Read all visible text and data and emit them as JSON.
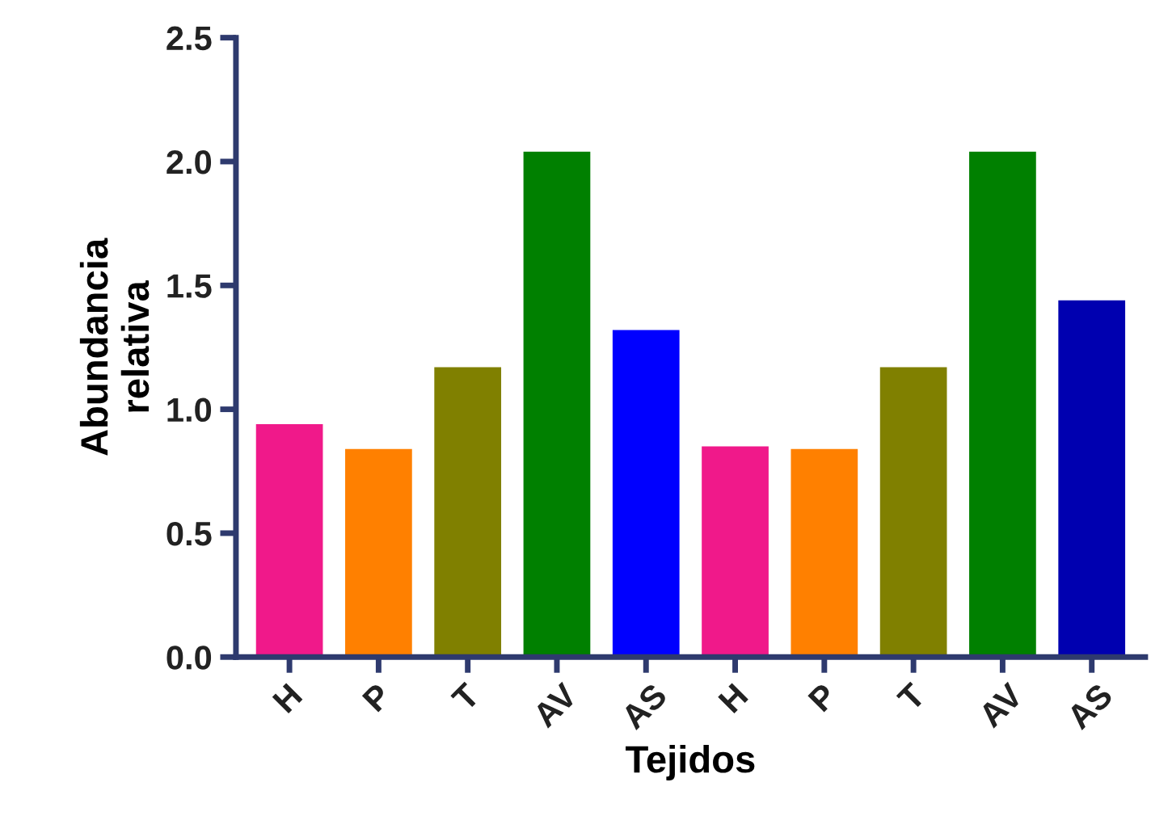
{
  "chart_data": {
    "type": "bar",
    "xlabel": "Tejidos",
    "ylabel": "Abundancia\nrelativa",
    "categories": [
      "H",
      "P",
      "T",
      "AV",
      "AS",
      "H",
      "P",
      "T",
      "AV",
      "AS"
    ],
    "values": [
      0.94,
      0.84,
      1.17,
      2.04,
      1.32,
      0.85,
      0.84,
      1.17,
      2.04,
      1.44
    ],
    "colors": [
      "#f0198a",
      "#ff8000",
      "#808000",
      "#008000",
      "#0000ff",
      "#f0198a",
      "#ff8000",
      "#808000",
      "#008000",
      "#0000b0"
    ],
    "ylim": [
      0,
      2.5
    ],
    "yticks": [
      {
        "value": 0,
        "label": "0.0"
      },
      {
        "value": 0.5,
        "label": "0.5"
      },
      {
        "value": 1,
        "label": "1.0"
      },
      {
        "value": 1.5,
        "label": "1.5"
      },
      {
        "value": 2,
        "label": "2.0"
      },
      {
        "value": 2.5,
        "label": "2.5"
      }
    ],
    "grid": false,
    "legend": false
  }
}
